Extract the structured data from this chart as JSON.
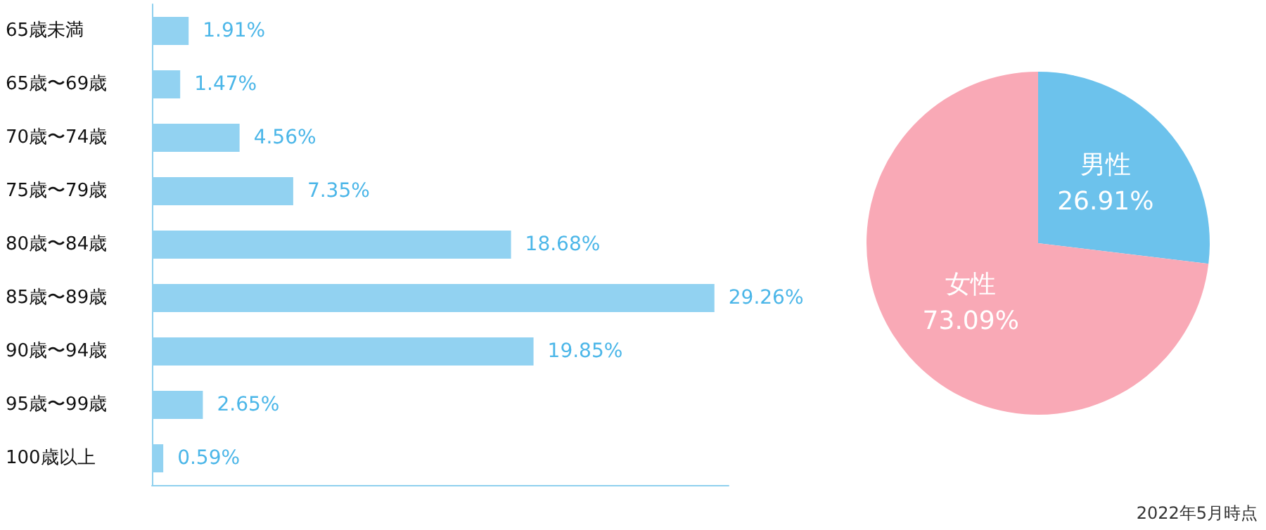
{
  "chart_data": [
    {
      "type": "bar",
      "orientation": "horizontal",
      "categories": [
        "65歳未満",
        "65歳〜69歳",
        "70歳〜74歳",
        "75歳〜79歳",
        "80歳〜84歳",
        "85歳〜89歳",
        "90歳〜94歳",
        "95歳〜99歳",
        "100歳以上"
      ],
      "values": [
        1.91,
        1.47,
        4.56,
        7.35,
        18.68,
        29.26,
        19.85,
        2.65,
        0.59
      ],
      "color": "#92d2f1",
      "value_labels": [
        "1.91%",
        "1.47%",
        "4.56%",
        "7.35%",
        "18.68%",
        "29.26%",
        "19.85%",
        "2.65%",
        "0.59%"
      ],
      "legend": false
    },
    {
      "type": "pie",
      "categories": [
        "男性",
        "女性"
      ],
      "values": [
        26.91,
        73.09
      ],
      "colors": [
        "#6cc2ec",
        "#f9a9b6"
      ],
      "value_labels": [
        "26.91%",
        "73.09%"
      ],
      "legend": false,
      "annotations": [
        "2022年5月時点"
      ]
    }
  ]
}
